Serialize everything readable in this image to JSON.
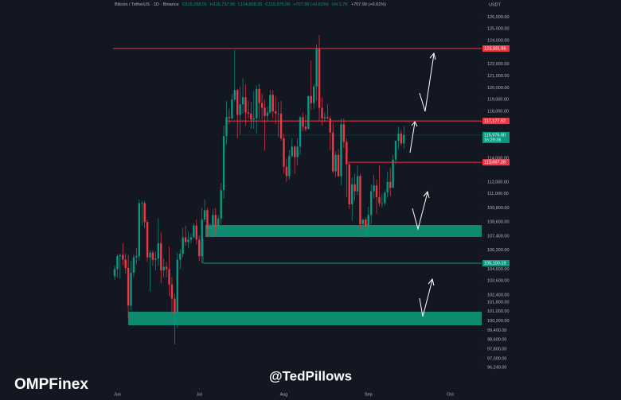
{
  "chart_data": {
    "type": "candlestick",
    "legend": {
      "symbol": "Bitcoin / TetherUS · 1D · Binance",
      "open": "O115,268.01",
      "high": "H116,737.99",
      "low": "L114,828.35",
      "close": "C115,976.00",
      "change": "+707.99 (+0.61%)",
      "volume": "Vol 1.7K",
      "change2": "+707.99 (+0.61%)"
    },
    "currency": "USDT",
    "up_color": "#089981",
    "down_color": "#f23645",
    "xlim": [
      -42,
      134.5
    ],
    "xticks": [
      {
        "value": 1,
        "label": "Jun"
      },
      {
        "value": 31,
        "label": "Jul"
      },
      {
        "value": 62,
        "label": "Aug"
      },
      {
        "value": 93,
        "label": "Sep"
      },
      {
        "value": 123,
        "label": "Oct"
      }
    ],
    "ylim": [
      94500,
      127450
    ],
    "yticks": [
      {
        "value": 126000,
        "label": "126,000.00"
      },
      {
        "value": 125000,
        "label": "125,000.00"
      },
      {
        "value": 124000,
        "label": "124,000.00"
      },
      {
        "value": 122000,
        "label": "122,000.00"
      },
      {
        "value": 121000,
        "label": "121,000.00"
      },
      {
        "value": 120000,
        "label": "120,000.00"
      },
      {
        "value": 119000,
        "label": "119,000.00"
      },
      {
        "value": 118000,
        "label": "118,000.00"
      },
      {
        "value": 114000,
        "label": "114,000.00"
      },
      {
        "value": 112000,
        "label": "112,000.00"
      },
      {
        "value": 111000,
        "label": "111,000.00"
      },
      {
        "value": 109800,
        "label": "109,800.00"
      },
      {
        "value": 108600,
        "label": "108,600.00"
      },
      {
        "value": 107400,
        "label": "107,400.00"
      },
      {
        "value": 106200,
        "label": "106,200.00"
      },
      {
        "value": 104600,
        "label": "104,600.00"
      },
      {
        "value": 103600,
        "label": "103,600.00"
      },
      {
        "value": 102400,
        "label": "102,400.00"
      },
      {
        "value": 101800,
        "label": "101,800.00"
      },
      {
        "value": 101000,
        "label": "101,000.00"
      },
      {
        "value": 100200,
        "label": "100,200.00"
      },
      {
        "value": 99400,
        "label": "99,400.00"
      },
      {
        "value": 98600,
        "label": "98,600.00"
      },
      {
        "value": 97800,
        "label": "97,800.00"
      },
      {
        "value": 97000,
        "label": "97,000.00"
      },
      {
        "value": 96240,
        "label": "96,240.00"
      }
    ],
    "price_lines": [
      {
        "value": 123331.96,
        "label": "123,331.96",
        "color": "#f23645"
      },
      {
        "value": 117177.52,
        "label": "117,177.52",
        "color": "#f23645"
      },
      {
        "value": 115976.0,
        "label": "115,976.00",
        "color": "#089981",
        "timer": "16:29:36"
      },
      {
        "value": 113667.28,
        "label": "113,667.28",
        "color": "#f23645"
      },
      {
        "value": 105100.19,
        "label": "105,100.19",
        "color": "#089981"
      }
    ],
    "ohlc": [
      [
        104000,
        104900,
        103700,
        104600
      ],
      [
        104600,
        105900,
        103900,
        105700
      ],
      [
        105700,
        105900,
        103800,
        105800
      ],
      [
        105800,
        106800,
        104900,
        105400
      ],
      [
        105400,
        105900,
        104200,
        104700
      ],
      [
        104700,
        105800,
        100400,
        101500
      ],
      [
        101500,
        105300,
        101100,
        104300
      ],
      [
        104300,
        105900,
        103900,
        105600
      ],
      [
        105600,
        106400,
        105000,
        105700
      ],
      [
        105700,
        110500,
        105300,
        110200
      ],
      [
        110200,
        110400,
        108300,
        110200
      ],
      [
        110200,
        110400,
        108100,
        108600
      ],
      [
        108600,
        108800,
        105200,
        105600
      ],
      [
        105600,
        106200,
        102700,
        106000
      ],
      [
        106000,
        106200,
        104900,
        105400
      ],
      [
        105400,
        106100,
        104500,
        105500
      ],
      [
        105500,
        108900,
        104900,
        106800
      ],
      [
        106800,
        107700,
        103400,
        104500
      ],
      [
        104500,
        105500,
        103900,
        104800
      ],
      [
        104800,
        105200,
        103900,
        104600
      ],
      [
        104600,
        106500,
        102300,
        103300
      ],
      [
        103300,
        103900,
        100800,
        102100
      ],
      [
        102100,
        102500,
        98200,
        100900
      ],
      [
        100900,
        106000,
        99600,
        105400
      ],
      [
        105400,
        106300,
        104600,
        105900
      ],
      [
        105900,
        108100,
        105600,
        107300
      ],
      [
        107300,
        108300,
        106600,
        106900
      ],
      [
        106900,
        107800,
        106400,
        107100
      ],
      [
        107100,
        107600,
        106800,
        107300
      ],
      [
        107300,
        108500,
        107200,
        108300
      ],
      [
        108300,
        108800,
        106700,
        107100
      ],
      [
        107100,
        107500,
        105300,
        105700
      ],
      [
        105700,
        109800,
        105100,
        108800
      ],
      [
        108800,
        110500,
        108600,
        109600
      ],
      [
        109600,
        109800,
        107300,
        108000
      ],
      [
        108000,
        108500,
        107800,
        108200
      ],
      [
        108200,
        109700,
        107800,
        109200
      ],
      [
        109200,
        109800,
        107500,
        108200
      ],
      [
        108200,
        109200,
        107400,
        108900
      ],
      [
        108900,
        111900,
        108400,
        111300
      ],
      [
        111300,
        116800,
        110600,
        115900
      ],
      [
        115900,
        118900,
        115200,
        117500
      ],
      [
        117500,
        118200,
        116900,
        117400
      ],
      [
        117400,
        119500,
        117300,
        119000
      ],
      [
        119000,
        123200,
        118900,
        119800
      ],
      [
        119800,
        119900,
        115700,
        117700
      ],
      [
        117700,
        120100,
        116000,
        118600
      ],
      [
        118600,
        120800,
        117800,
        119200
      ],
      [
        119200,
        120300,
        116800,
        117900
      ],
      [
        117900,
        118900,
        117400,
        117800
      ],
      [
        117800,
        118800,
        116500,
        117300
      ],
      [
        117300,
        119700,
        116500,
        117400
      ],
      [
        117400,
        120200,
        116100,
        119900
      ],
      [
        119900,
        120300,
        117300,
        118700
      ],
      [
        118700,
        119500,
        117300,
        118300
      ],
      [
        118300,
        119000,
        114700,
        117600
      ],
      [
        117600,
        118400,
        117100,
        117900
      ],
      [
        117900,
        119800,
        117800,
        119400
      ],
      [
        119400,
        119800,
        117400,
        118000
      ],
      [
        118000,
        119300,
        116900,
        117800
      ],
      [
        117800,
        118800,
        115800,
        117800
      ],
      [
        117800,
        118900,
        115500,
        115700
      ],
      [
        115700,
        116100,
        112700,
        113300
      ],
      [
        113300,
        114000,
        112000,
        112500
      ],
      [
        112500,
        114700,
        112200,
        114200
      ],
      [
        114200,
        115700,
        114100,
        115000
      ],
      [
        115000,
        115100,
        112700,
        114100
      ],
      [
        114100,
        115700,
        113400,
        115000
      ],
      [
        115000,
        117600,
        114300,
        117500
      ],
      [
        117500,
        117900,
        116300,
        116700
      ],
      [
        116700,
        117700,
        116300,
        116500
      ],
      [
        116500,
        119300,
        116500,
        119300
      ],
      [
        119300,
        122300,
        118100,
        118700
      ],
      [
        118700,
        120300,
        118200,
        120100
      ],
      [
        120100,
        123700,
        118900,
        123300
      ],
      [
        123300,
        124470,
        117200,
        118300
      ],
      [
        118300,
        119200,
        116800,
        117400
      ],
      [
        117400,
        117900,
        117100,
        117500
      ],
      [
        117500,
        118600,
        117300,
        117400
      ],
      [
        117400,
        117600,
        114700,
        116200
      ],
      [
        116200,
        117000,
        112700,
        112900
      ],
      [
        112900,
        114600,
        112400,
        114300
      ],
      [
        114300,
        114800,
        112400,
        112500
      ],
      [
        112500,
        117400,
        111700,
        116900
      ],
      [
        116900,
        117400,
        114900,
        115400
      ],
      [
        115400,
        115700,
        110700,
        113500
      ],
      [
        113500,
        113600,
        109700,
        110100
      ],
      [
        110100,
        112400,
        108700,
        111800
      ],
      [
        111800,
        112700,
        110400,
        111200
      ],
      [
        111200,
        113400,
        110900,
        112500
      ],
      [
        112500,
        112700,
        107900,
        108400
      ],
      [
        108400,
        108900,
        107500,
        108800
      ],
      [
        108800,
        109000,
        107300,
        108200
      ],
      [
        108200,
        109900,
        107300,
        109200
      ],
      [
        109200,
        111800,
        108400,
        111200
      ],
      [
        111200,
        112600,
        110600,
        111700
      ],
      [
        111700,
        112200,
        109300,
        110700
      ],
      [
        110700,
        113400,
        109900,
        110200
      ],
      [
        110200,
        111000,
        109800,
        110200
      ],
      [
        110200,
        111300,
        110000,
        111100
      ],
      [
        111100,
        112900,
        110700,
        112000
      ],
      [
        112000,
        113200,
        110800,
        111500
      ],
      [
        111500,
        114300,
        111500,
        113900
      ],
      [
        113900,
        115500,
        113500,
        115500
      ],
      [
        115500,
        116700,
        114800,
        116100
      ],
      [
        116100,
        116400,
        115100,
        115268.01
      ],
      [
        115268.01,
        116737.99,
        114828.35,
        115976
      ]
    ],
    "credit": "@TedPillows",
    "watermark": "OMPFinex"
  }
}
